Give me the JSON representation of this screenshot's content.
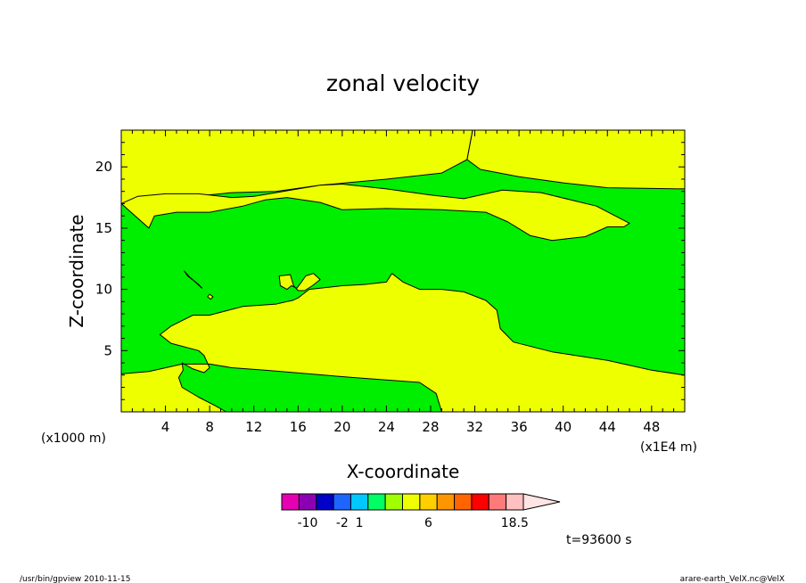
{
  "chart_data": {
    "type": "contour",
    "title": "zonal velocity",
    "xlabel": "X-coordinate",
    "ylabel": "Z-coordinate",
    "x_unit": "(x1E4 m)",
    "y_unit": "(x1000 m)",
    "xlim": [
      0,
      51
    ],
    "ylim": [
      0,
      23
    ],
    "x_ticks": [
      "4",
      "8",
      "12",
      "16",
      "20",
      "24",
      "28",
      "32",
      "36",
      "40",
      "44",
      "48"
    ],
    "y_ticks": [
      "5",
      "10",
      "15",
      "20"
    ],
    "grid": false,
    "legend_position": "below",
    "fill_colors": {
      "low_band": "#00ee00",
      "high_band": "#eeff00"
    },
    "regions": [
      {
        "band": "high_band",
        "name": "upper-left",
        "points": [
          [
            0,
            17
          ],
          [
            2,
            18
          ],
          [
            4,
            18.6
          ],
          [
            7,
            19
          ],
          [
            11,
            19.8
          ],
          [
            13.2,
            20.5
          ],
          [
            14.3,
            21.7
          ],
          [
            14.5,
            23
          ],
          [
            0,
            23
          ]
        ]
      },
      {
        "band": "high_band",
        "name": "upper-right",
        "points": [
          [
            31.8,
            23
          ],
          [
            31.3,
            20.6
          ],
          [
            29,
            19.5
          ],
          [
            24,
            19
          ],
          [
            18,
            18.5
          ],
          [
            14,
            18
          ],
          [
            10,
            17.9
          ],
          [
            0,
            17
          ],
          [
            0,
            23
          ]
        ]
      },
      {
        "band": "high_band",
        "name": "right-edge",
        "points": [
          [
            31.8,
            23
          ],
          [
            31.3,
            20.6
          ],
          [
            32.5,
            19.8
          ],
          [
            36,
            19.2
          ],
          [
            40,
            18.7
          ],
          [
            44,
            18.3
          ],
          [
            51,
            18.2
          ],
          [
            51,
            23
          ]
        ]
      },
      {
        "band": "high_band",
        "name": "middle-tongue",
        "points": [
          [
            2.5,
            15
          ],
          [
            3,
            16
          ],
          [
            5,
            16.3
          ],
          [
            8,
            16.3
          ],
          [
            11,
            16.8
          ],
          [
            13,
            17.3
          ],
          [
            15,
            17.5
          ],
          [
            18,
            17.1
          ],
          [
            20,
            16.5
          ],
          [
            24,
            16.6
          ],
          [
            29,
            16.5
          ],
          [
            33,
            16.3
          ],
          [
            35,
            15.5
          ],
          [
            37,
            14.4
          ],
          [
            39,
            14
          ],
          [
            42,
            14.3
          ],
          [
            44,
            15.1
          ],
          [
            45.5,
            15.1
          ],
          [
            46,
            15.4
          ],
          [
            43,
            16.8
          ],
          [
            38,
            17.9
          ],
          [
            34.5,
            18.1
          ],
          [
            33,
            17.8
          ],
          [
            31,
            17.4
          ],
          [
            28,
            17.7
          ],
          [
            24,
            18.2
          ],
          [
            20,
            18.6
          ],
          [
            18,
            18.5
          ],
          [
            16,
            18.2
          ],
          [
            14,
            17.9
          ],
          [
            12,
            17.6
          ],
          [
            10,
            17.5
          ],
          [
            7,
            17.8
          ],
          [
            4,
            17.8
          ],
          [
            1.5,
            17.6
          ],
          [
            0,
            17
          ]
        ]
      },
      {
        "band": "high_band",
        "name": "lower-core",
        "points": [
          [
            0,
            3.1
          ],
          [
            2.5,
            3.3
          ],
          [
            5.5,
            3.9
          ],
          [
            8,
            3.9
          ],
          [
            10,
            3.6
          ],
          [
            13,
            3.4
          ],
          [
            17,
            3.1
          ],
          [
            21,
            2.8
          ],
          [
            24,
            2.6
          ],
          [
            27,
            2.4
          ],
          [
            28.5,
            1.5
          ],
          [
            29,
            0
          ],
          [
            51,
            0
          ],
          [
            51,
            3
          ],
          [
            48,
            3.4
          ],
          [
            44,
            4.2
          ],
          [
            39,
            4.9
          ],
          [
            35.5,
            5.7
          ],
          [
            34.3,
            6.8
          ],
          [
            34,
            8.3
          ],
          [
            33,
            9.1
          ],
          [
            31,
            9.8
          ],
          [
            29,
            10
          ],
          [
            27,
            10
          ],
          [
            25.5,
            10.6
          ],
          [
            24.5,
            11.3
          ],
          [
            24,
            10.6
          ],
          [
            22,
            10.4
          ],
          [
            20,
            10.3
          ],
          [
            17,
            10
          ],
          [
            16,
            9.3
          ],
          [
            15.5,
            9.1
          ],
          [
            15,
            9
          ],
          [
            14,
            8.8
          ],
          [
            11,
            8.6
          ],
          [
            8,
            7.9
          ],
          [
            6.5,
            7.9
          ],
          [
            4.5,
            7
          ],
          [
            3.5,
            6.3
          ],
          [
            4.5,
            5.6
          ],
          [
            7,
            5
          ],
          [
            7.5,
            4.6
          ],
          [
            8,
            3.6
          ],
          [
            7.5,
            3.2
          ],
          [
            6.5,
            3.5
          ],
          [
            5.5,
            4
          ],
          [
            5.6,
            3.4
          ],
          [
            5.2,
            2.8
          ],
          [
            5.5,
            2
          ],
          [
            7,
            1.2
          ],
          [
            8.5,
            0.5
          ],
          [
            9.5,
            0
          ],
          [
            0,
            0
          ]
        ]
      },
      {
        "band": "high_band",
        "name": "blob-14-11",
        "points": [
          [
            14.3,
            11.1
          ],
          [
            14.4,
            10.3
          ],
          [
            15,
            10
          ],
          [
            15.4,
            10.3
          ],
          [
            15.9,
            10.1
          ],
          [
            16.3,
            10.6
          ],
          [
            16.7,
            11.1
          ],
          [
            17.4,
            11.3
          ],
          [
            18,
            10.8
          ],
          [
            17.3,
            10.3
          ],
          [
            16.6,
            9.9
          ],
          [
            16,
            9.9
          ],
          [
            15.6,
            10.3
          ],
          [
            15.3,
            11.2
          ]
        ]
      },
      {
        "band": "high_band",
        "name": "sliver-6-11",
        "points": [
          [
            5.7,
            11.5
          ],
          [
            6.2,
            11
          ],
          [
            7,
            10.4
          ],
          [
            7.3,
            10.1
          ],
          [
            6.7,
            10.6
          ],
          [
            6,
            11.1
          ]
        ]
      },
      {
        "band": "high_band",
        "name": "dot-8-9",
        "points": [
          [
            7.8,
            9.4
          ],
          [
            8.1,
            9.2
          ],
          [
            8.3,
            9.4
          ],
          [
            8,
            9.6
          ]
        ]
      }
    ],
    "colorbar": {
      "levels": [
        {
          "label": "",
          "color": "#e600b4"
        },
        {
          "label": "-10",
          "color": "#8c00b4"
        },
        {
          "label": "",
          "color": "#0000c8"
        },
        {
          "label": "-2",
          "color": "#1e64ff"
        },
        {
          "label": "1",
          "color": "#00c8ff"
        },
        {
          "label": "",
          "color": "#00ff64"
        },
        {
          "label": "",
          "color": "#a0ff00"
        },
        {
          "label": "",
          "color": "#f0ff00"
        },
        {
          "label": "6",
          "color": "#ffd000"
        },
        {
          "label": "",
          "color": "#ff9600"
        },
        {
          "label": "",
          "color": "#ff6400"
        },
        {
          "label": "",
          "color": "#ff0000"
        },
        {
          "label": "",
          "color": "#ff7a7a"
        },
        {
          "label": "18.5",
          "color": "#ffc0c0"
        }
      ],
      "arrow_color": "#ffe4e4"
    }
  },
  "footer": {
    "time_label": "t=93600 s",
    "left_note": "/usr/bin/gpview  2010-11-15",
    "right_note": "arare-earth_VelX.nc@VelX"
  }
}
